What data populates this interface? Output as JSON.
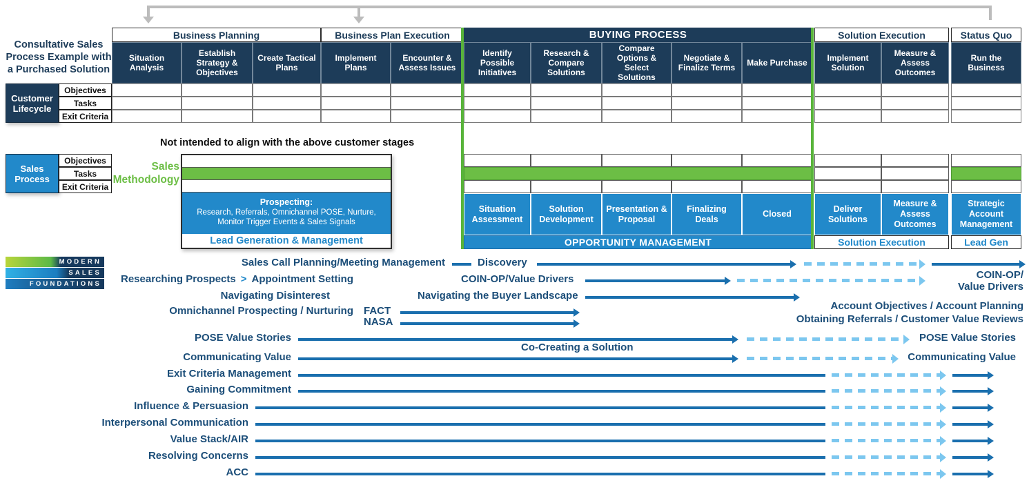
{
  "title": "Consultative Sales Process Example with a Purchased Solution",
  "note": "Not intended to align with the above customer stages",
  "customer_lifecycle": {
    "label": "Customer Lifecycle",
    "row_labels": [
      "Objectives",
      "Tasks",
      "Exit Criteria"
    ]
  },
  "sales_process": {
    "label": "Sales Process",
    "row_labels": [
      "Objectives",
      "Tasks",
      "Exit Criteria"
    ]
  },
  "sales_methodology_label": "Sales Methodology",
  "stage_groups": [
    {
      "label": "Business Planning",
      "columns": [
        "Situation Analysis",
        "Establish Strategy & Objectives",
        "Create Tactical Plans"
      ]
    },
    {
      "label": "Business Plan Execution",
      "columns": [
        "Implement Plans",
        "Encounter & Assess Issues"
      ]
    },
    {
      "label": "BUYING PROCESS",
      "columns": [
        "Identify Possible Initiatives",
        "Research & Compare Solutions",
        "Compare Options & Select Solutions",
        "Negotiate & Finalize Terms",
        "Make Purchase"
      ]
    },
    {
      "label": "Solution Execution",
      "columns": [
        "Implement Solution",
        "Measure & Assess Outcomes"
      ]
    },
    {
      "label": "Status Quo",
      "columns": [
        "Run the Business"
      ]
    }
  ],
  "lead_generation": {
    "prospecting_title": "Prospecting:",
    "prospecting_detail": "Research, Referrals, Omnichannel POSE, Nurture, Monitor Trigger Events & Sales Signals",
    "footer": "Lead Generation & Management"
  },
  "opportunity_management": {
    "stages": [
      "Situation Assessment",
      "Solution Development",
      "Presentation & Proposal",
      "Finalizing Deals",
      "Closed"
    ],
    "footer": "OPPORTUNITY MANAGEMENT"
  },
  "solution_execution": {
    "stages": [
      "Deliver Solutions",
      "Measure & Assess Outcomes"
    ],
    "footer": "Solution Execution"
  },
  "status_quo": {
    "stages": [
      "Strategic Account Management"
    ],
    "footer": "Lead Gen"
  },
  "logo": {
    "lines": [
      "MODERN",
      "SALES",
      "FOUNDATIONS"
    ]
  },
  "skills": {
    "row1": {
      "label": "Sales Call Planning/Meeting Management",
      "mid_label": "Discovery"
    },
    "row2": {
      "label_pre": "Researching Prospects",
      "label_sep": ">",
      "label_post": "Appointment Setting",
      "mid_label": "COIN-OP/Value Drivers"
    },
    "row3": {
      "label": "Navigating Disinterest",
      "mid_label": "Navigating the Buyer Landscape"
    },
    "row4": {
      "label": "Omnichannel Prospecting / Nurturing",
      "mid_label": "FACT"
    },
    "row5": {
      "mid_label": "NASA"
    },
    "row6": {
      "label": "POSE Value Stories",
      "right_label": "POSE Value Stories"
    },
    "row7": {
      "label": "Co-Creating a Solution"
    },
    "row8": {
      "label": "Communicating Value",
      "right_label": "Communicating Value"
    },
    "row9": {
      "label": "Exit Criteria Management"
    },
    "row10": {
      "label": "Gaining Commitment"
    },
    "row11": {
      "label": "Influence & Persuasion"
    },
    "row12": {
      "label": "Interpersonal Communication"
    },
    "row13": {
      "label": "Value Stack/AIR"
    },
    "row14": {
      "label": "Resolving Concerns"
    },
    "row15": {
      "label": "ACC"
    },
    "right_labels": {
      "coin_op": "COIN-OP/",
      "value_drivers": "Value Drivers",
      "account": "Account Objectives / Account Planning",
      "referrals": "Obtaining Referrals / Customer Value Reviews"
    }
  },
  "colors": {
    "navy": "#1d3c59",
    "blue": "#2289ca",
    "green": "#6cbe45",
    "arrow_blue": "#1a6fae",
    "arrow_light_blue": "#7cc7ef",
    "gray_connector": "#bcbcbc",
    "label_navy": "#1c4e79"
  }
}
